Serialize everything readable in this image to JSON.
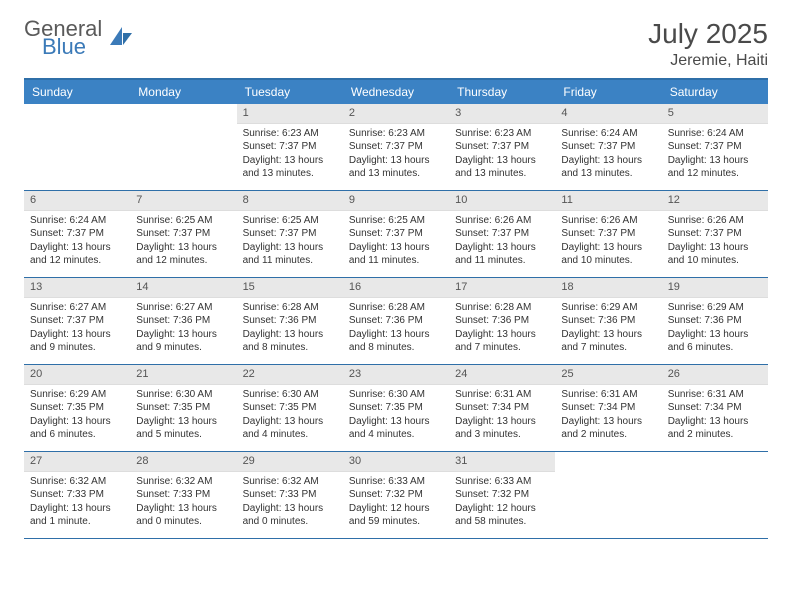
{
  "logo": {
    "word1": "General",
    "word2": "Blue"
  },
  "title": "July 2025",
  "location": "Jeremie, Haiti",
  "colors": {
    "header_bg": "#3b82c4",
    "header_text": "#ffffff",
    "border": "#2f6fa8",
    "daynum_bg": "#e8e8e8",
    "logo_gray": "#5a5a5a",
    "logo_blue": "#3b7ab8"
  },
  "day_labels": [
    "Sunday",
    "Monday",
    "Tuesday",
    "Wednesday",
    "Thursday",
    "Friday",
    "Saturday"
  ],
  "weeks": [
    [
      null,
      null,
      {
        "n": "1",
        "sr": "Sunrise: 6:23 AM",
        "ss": "Sunset: 7:37 PM",
        "dl": "Daylight: 13 hours and 13 minutes."
      },
      {
        "n": "2",
        "sr": "Sunrise: 6:23 AM",
        "ss": "Sunset: 7:37 PM",
        "dl": "Daylight: 13 hours and 13 minutes."
      },
      {
        "n": "3",
        "sr": "Sunrise: 6:23 AM",
        "ss": "Sunset: 7:37 PM",
        "dl": "Daylight: 13 hours and 13 minutes."
      },
      {
        "n": "4",
        "sr": "Sunrise: 6:24 AM",
        "ss": "Sunset: 7:37 PM",
        "dl": "Daylight: 13 hours and 13 minutes."
      },
      {
        "n": "5",
        "sr": "Sunrise: 6:24 AM",
        "ss": "Sunset: 7:37 PM",
        "dl": "Daylight: 13 hours and 12 minutes."
      }
    ],
    [
      {
        "n": "6",
        "sr": "Sunrise: 6:24 AM",
        "ss": "Sunset: 7:37 PM",
        "dl": "Daylight: 13 hours and 12 minutes."
      },
      {
        "n": "7",
        "sr": "Sunrise: 6:25 AM",
        "ss": "Sunset: 7:37 PM",
        "dl": "Daylight: 13 hours and 12 minutes."
      },
      {
        "n": "8",
        "sr": "Sunrise: 6:25 AM",
        "ss": "Sunset: 7:37 PM",
        "dl": "Daylight: 13 hours and 11 minutes."
      },
      {
        "n": "9",
        "sr": "Sunrise: 6:25 AM",
        "ss": "Sunset: 7:37 PM",
        "dl": "Daylight: 13 hours and 11 minutes."
      },
      {
        "n": "10",
        "sr": "Sunrise: 6:26 AM",
        "ss": "Sunset: 7:37 PM",
        "dl": "Daylight: 13 hours and 11 minutes."
      },
      {
        "n": "11",
        "sr": "Sunrise: 6:26 AM",
        "ss": "Sunset: 7:37 PM",
        "dl": "Daylight: 13 hours and 10 minutes."
      },
      {
        "n": "12",
        "sr": "Sunrise: 6:26 AM",
        "ss": "Sunset: 7:37 PM",
        "dl": "Daylight: 13 hours and 10 minutes."
      }
    ],
    [
      {
        "n": "13",
        "sr": "Sunrise: 6:27 AM",
        "ss": "Sunset: 7:37 PM",
        "dl": "Daylight: 13 hours and 9 minutes."
      },
      {
        "n": "14",
        "sr": "Sunrise: 6:27 AM",
        "ss": "Sunset: 7:36 PM",
        "dl": "Daylight: 13 hours and 9 minutes."
      },
      {
        "n": "15",
        "sr": "Sunrise: 6:28 AM",
        "ss": "Sunset: 7:36 PM",
        "dl": "Daylight: 13 hours and 8 minutes."
      },
      {
        "n": "16",
        "sr": "Sunrise: 6:28 AM",
        "ss": "Sunset: 7:36 PM",
        "dl": "Daylight: 13 hours and 8 minutes."
      },
      {
        "n": "17",
        "sr": "Sunrise: 6:28 AM",
        "ss": "Sunset: 7:36 PM",
        "dl": "Daylight: 13 hours and 7 minutes."
      },
      {
        "n": "18",
        "sr": "Sunrise: 6:29 AM",
        "ss": "Sunset: 7:36 PM",
        "dl": "Daylight: 13 hours and 7 minutes."
      },
      {
        "n": "19",
        "sr": "Sunrise: 6:29 AM",
        "ss": "Sunset: 7:36 PM",
        "dl": "Daylight: 13 hours and 6 minutes."
      }
    ],
    [
      {
        "n": "20",
        "sr": "Sunrise: 6:29 AM",
        "ss": "Sunset: 7:35 PM",
        "dl": "Daylight: 13 hours and 6 minutes."
      },
      {
        "n": "21",
        "sr": "Sunrise: 6:30 AM",
        "ss": "Sunset: 7:35 PM",
        "dl": "Daylight: 13 hours and 5 minutes."
      },
      {
        "n": "22",
        "sr": "Sunrise: 6:30 AM",
        "ss": "Sunset: 7:35 PM",
        "dl": "Daylight: 13 hours and 4 minutes."
      },
      {
        "n": "23",
        "sr": "Sunrise: 6:30 AM",
        "ss": "Sunset: 7:35 PM",
        "dl": "Daylight: 13 hours and 4 minutes."
      },
      {
        "n": "24",
        "sr": "Sunrise: 6:31 AM",
        "ss": "Sunset: 7:34 PM",
        "dl": "Daylight: 13 hours and 3 minutes."
      },
      {
        "n": "25",
        "sr": "Sunrise: 6:31 AM",
        "ss": "Sunset: 7:34 PM",
        "dl": "Daylight: 13 hours and 2 minutes."
      },
      {
        "n": "26",
        "sr": "Sunrise: 6:31 AM",
        "ss": "Sunset: 7:34 PM",
        "dl": "Daylight: 13 hours and 2 minutes."
      }
    ],
    [
      {
        "n": "27",
        "sr": "Sunrise: 6:32 AM",
        "ss": "Sunset: 7:33 PM",
        "dl": "Daylight: 13 hours and 1 minute."
      },
      {
        "n": "28",
        "sr": "Sunrise: 6:32 AM",
        "ss": "Sunset: 7:33 PM",
        "dl": "Daylight: 13 hours and 0 minutes."
      },
      {
        "n": "29",
        "sr": "Sunrise: 6:32 AM",
        "ss": "Sunset: 7:33 PM",
        "dl": "Daylight: 13 hours and 0 minutes."
      },
      {
        "n": "30",
        "sr": "Sunrise: 6:33 AM",
        "ss": "Sunset: 7:32 PM",
        "dl": "Daylight: 12 hours and 59 minutes."
      },
      {
        "n": "31",
        "sr": "Sunrise: 6:33 AM",
        "ss": "Sunset: 7:32 PM",
        "dl": "Daylight: 12 hours and 58 minutes."
      },
      null,
      null
    ]
  ]
}
